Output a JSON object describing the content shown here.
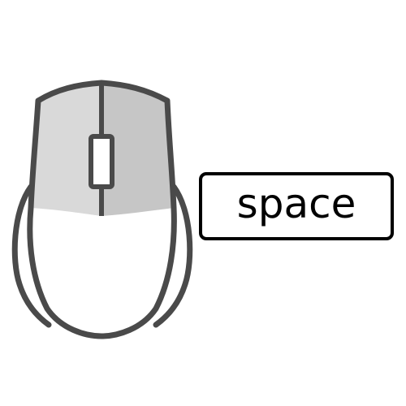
{
  "hint": {
    "key_label": "space",
    "icon": "mouse-icon",
    "highlighted_part": "right-button"
  },
  "colors": {
    "background": "#ffffff",
    "outline": "#4a4a4a",
    "left_button_fill": "#d9d9d9",
    "right_button_fill": "#c6c6c6",
    "key_border": "#000000",
    "key_text": "#000000"
  }
}
